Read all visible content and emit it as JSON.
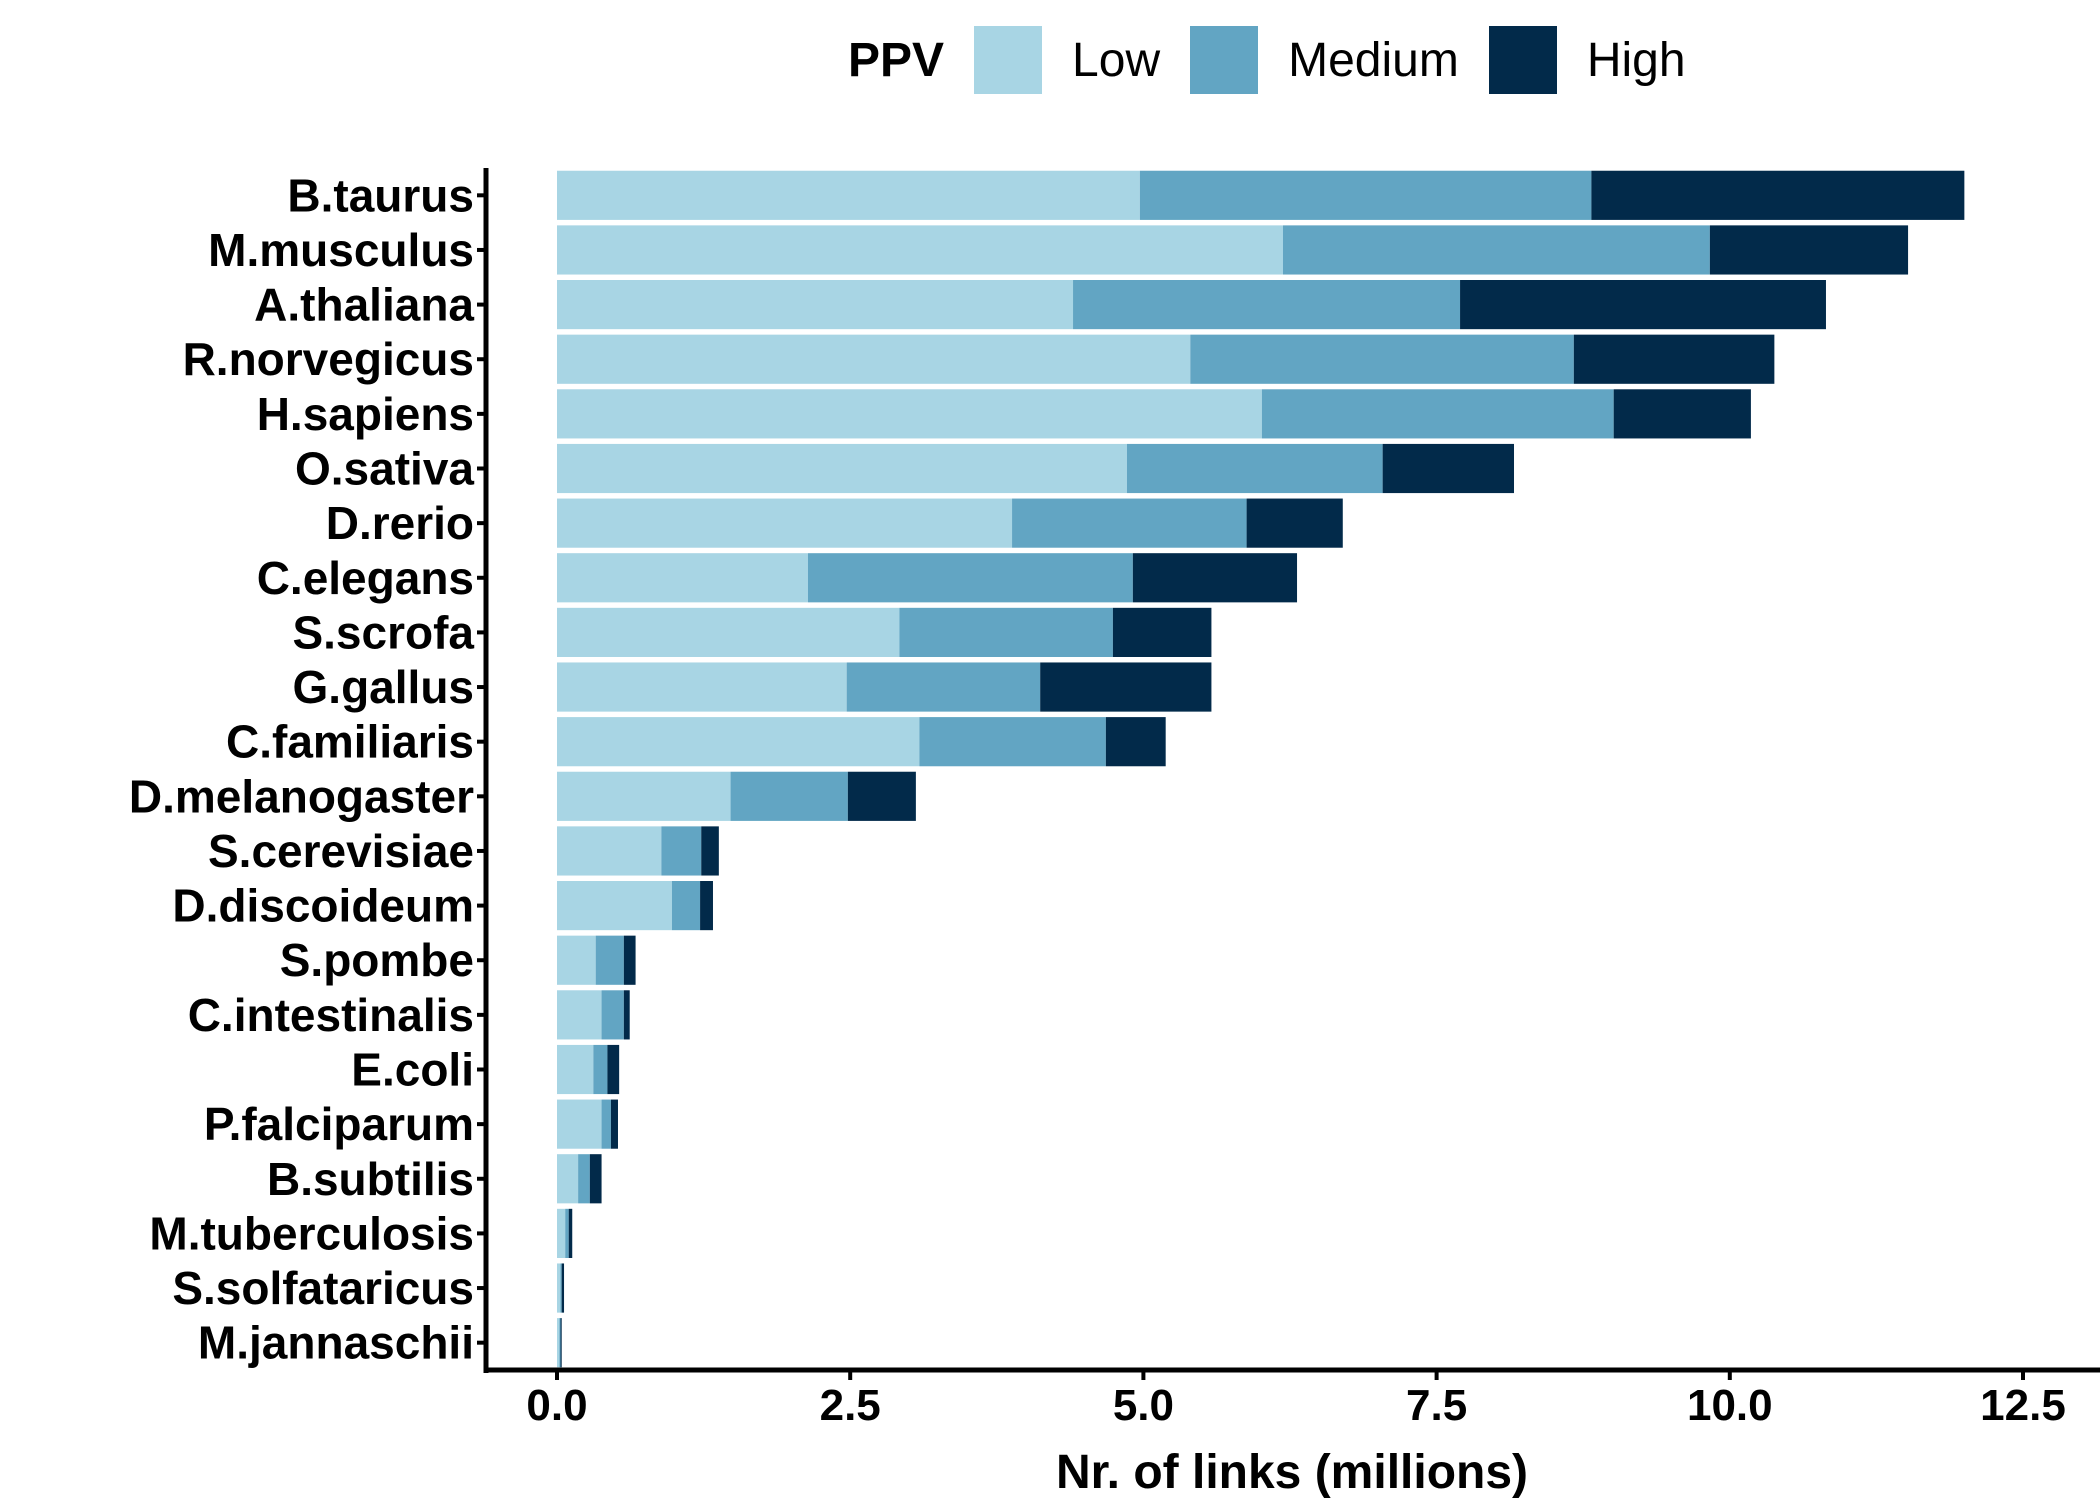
{
  "chart_data": {
    "type": "bar",
    "orientation": "horizontal",
    "stacked": true,
    "title": "",
    "xlabel": "Nr. of links (millions)",
    "ylabel": "",
    "xlim": [
      0,
      12.5
    ],
    "x_ticks": [
      "0.0",
      "2.5",
      "5.0",
      "7.5",
      "10.0",
      "12.5"
    ],
    "legend": {
      "title": "PPV",
      "position": "top"
    },
    "categories": [
      "B.taurus",
      "M.musculus",
      "A.thaliana",
      "R.norvegicus",
      "H.sapiens",
      "O.sativa",
      "D.rerio",
      "C.elegans",
      "S.scrofa",
      "G.gallus",
      "C.familiaris",
      "D.melanogaster",
      "S.cerevisiae",
      "D.discoideum",
      "S.pombe",
      "C.intestinalis",
      "E.coli",
      "P.falciparum",
      "B.subtilis",
      "M.tuberculosis",
      "S.solfataricus",
      "M.jannaschii"
    ],
    "series": [
      {
        "name": "Low",
        "color": "#a8d5e4",
        "values": [
          4.97,
          6.19,
          4.4,
          5.4,
          6.01,
          4.86,
          3.88,
          2.14,
          2.92,
          2.47,
          3.09,
          1.48,
          0.89,
          0.98,
          0.33,
          0.38,
          0.31,
          0.38,
          0.18,
          0.07,
          0.03,
          0.02
        ]
      },
      {
        "name": "Medium",
        "color": "#62a5c3",
        "values": [
          3.85,
          3.64,
          3.3,
          3.27,
          3.0,
          2.18,
          2.0,
          2.77,
          1.82,
          1.65,
          1.59,
          1.0,
          0.34,
          0.24,
          0.24,
          0.19,
          0.12,
          0.08,
          0.1,
          0.03,
          0.01,
          0.01
        ]
      },
      {
        "name": "High",
        "color": "#022a4a",
        "values": [
          3.18,
          1.69,
          3.12,
          1.71,
          1.17,
          1.12,
          0.82,
          1.4,
          0.84,
          1.46,
          0.51,
          0.58,
          0.15,
          0.11,
          0.1,
          0.05,
          0.1,
          0.06,
          0.1,
          0.03,
          0.02,
          0.01
        ]
      }
    ]
  }
}
